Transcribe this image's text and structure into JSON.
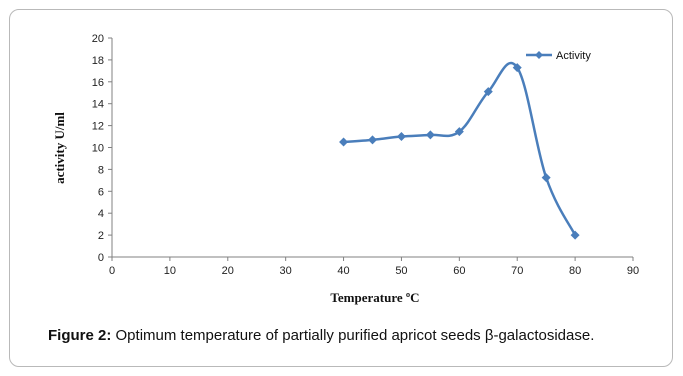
{
  "chart_data": {
    "type": "line",
    "title": "",
    "xlabel": "Temperature ºC",
    "ylabel": "activity U/ml",
    "xlim": [
      0,
      90
    ],
    "ylim": [
      0,
      20
    ],
    "xticks": [
      0,
      10,
      20,
      30,
      40,
      50,
      60,
      70,
      80,
      90
    ],
    "yticks": [
      0,
      2,
      4,
      6,
      8,
      10,
      12,
      14,
      16,
      18,
      20
    ],
    "grid": false,
    "legend": "top-right",
    "series": [
      {
        "name": "Activity",
        "color": "#4a7ebb",
        "marker": "diamond",
        "smooth": true,
        "x": [
          40,
          45,
          50,
          55,
          60,
          65,
          70,
          75,
          80
        ],
        "y": [
          10.5,
          10.7,
          11.0,
          11.15,
          11.45,
          15.1,
          17.3,
          7.25,
          2.0
        ]
      }
    ]
  },
  "caption": {
    "label": "Figure 2:",
    "text": " Optimum temperature of partially purified apricot seeds β-galactosidase."
  }
}
